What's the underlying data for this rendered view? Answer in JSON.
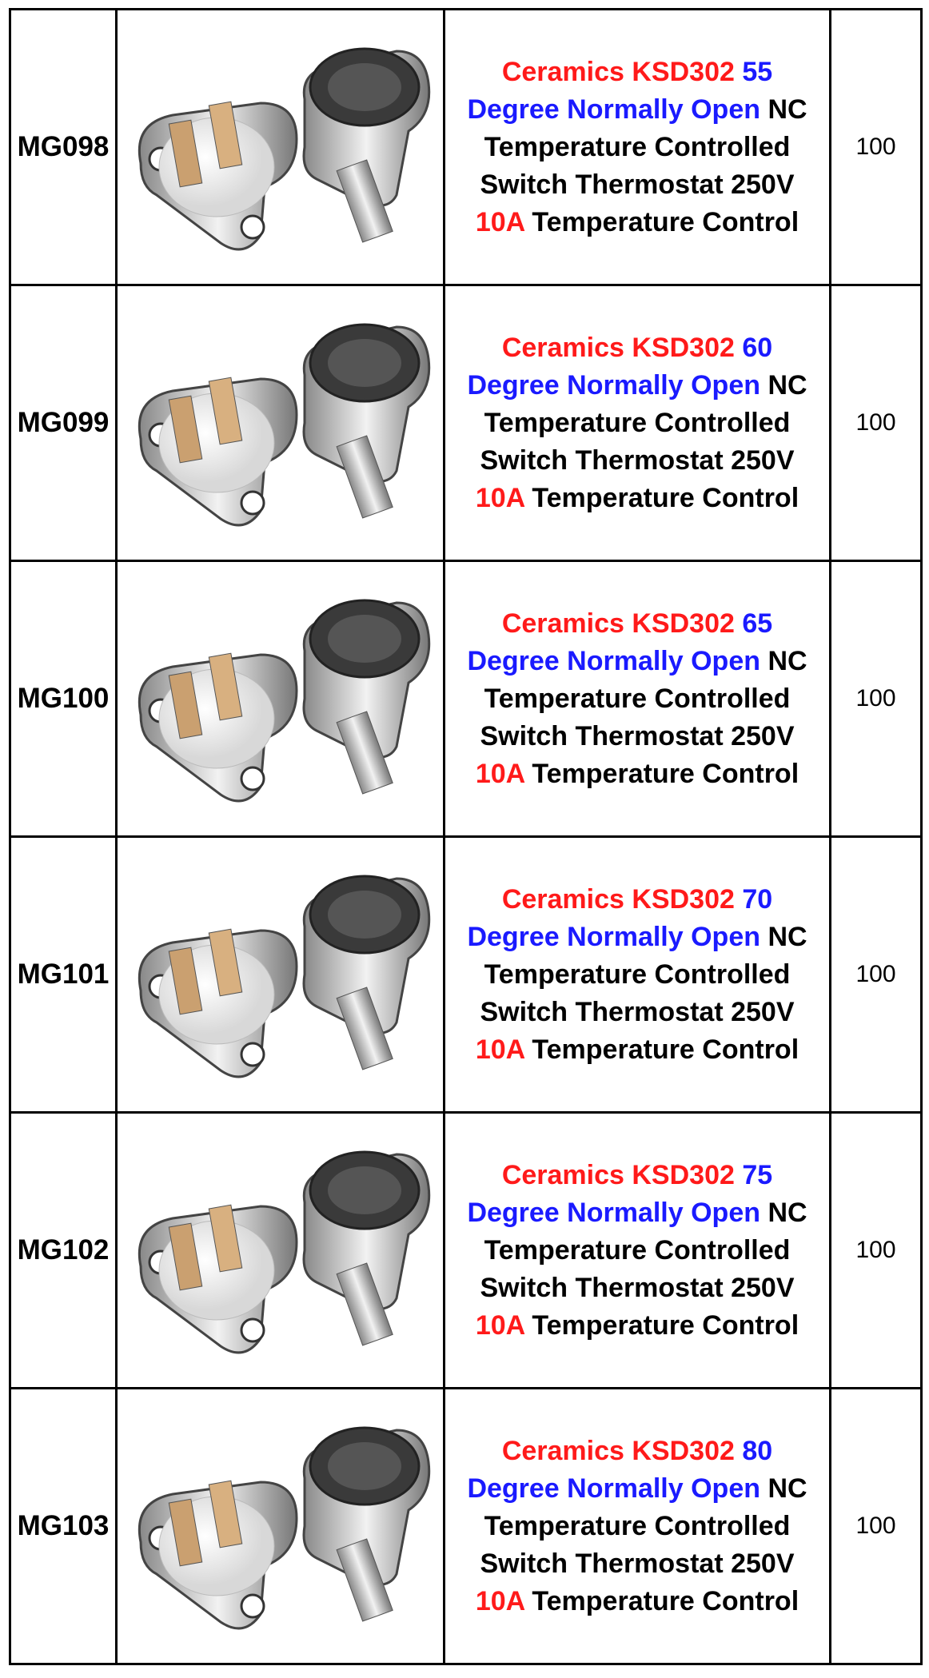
{
  "table": {
    "rows": [
      {
        "code": "MG098",
        "description": [
          {
            "text": "Ceramics KSD302",
            "color": "#ff1a1a"
          },
          {
            "text": "55 Degree Normally Open",
            "color": "#1a1aff"
          },
          {
            "text": "NC Temperature Controlled Switch Thermostat 250V",
            "color": "#000000"
          },
          {
            "text": "10A",
            "color": "#ff1a1a"
          },
          {
            "text": "Temperature Control",
            "color": "#000000"
          }
        ],
        "quantity": "100"
      },
      {
        "code": "MG099",
        "description": [
          {
            "text": "Ceramics KSD302",
            "color": "#ff1a1a"
          },
          {
            "text": "60 Degree Normally Open",
            "color": "#1a1aff"
          },
          {
            "text": "NC Temperature Controlled Switch Thermostat 250V",
            "color": "#000000"
          },
          {
            "text": "10A",
            "color": "#ff1a1a"
          },
          {
            "text": "Temperature Control",
            "color": "#000000"
          }
        ],
        "quantity": "100"
      },
      {
        "code": "MG100",
        "description": [
          {
            "text": "Ceramics KSD302",
            "color": "#ff1a1a"
          },
          {
            "text": "65 Degree Normally Open",
            "color": "#1a1aff"
          },
          {
            "text": "NC Temperature Controlled Switch Thermostat 250V",
            "color": "#000000"
          },
          {
            "text": "10A",
            "color": "#ff1a1a"
          },
          {
            "text": "Temperature Control",
            "color": "#000000"
          }
        ],
        "quantity": "100"
      },
      {
        "code": "MG101",
        "description": [
          {
            "text": "Ceramics KSD302",
            "color": "#ff1a1a"
          },
          {
            "text": "70 Degree Normally Open",
            "color": "#1a1aff"
          },
          {
            "text": "NC Temperature Controlled Switch Thermostat 250V",
            "color": "#000000"
          },
          {
            "text": "10A",
            "color": "#ff1a1a"
          },
          {
            "text": "Temperature Control",
            "color": "#000000"
          }
        ],
        "quantity": "100"
      },
      {
        "code": "MG102",
        "description": [
          {
            "text": "Ceramics KSD302",
            "color": "#ff1a1a"
          },
          {
            "text": "75 Degree Normally Open",
            "color": "#1a1aff"
          },
          {
            "text": "NC Temperature Controlled Switch Thermostat 250V",
            "color": "#000000"
          },
          {
            "text": "10A",
            "color": "#ff1a1a"
          },
          {
            "text": "Temperature Control",
            "color": "#000000"
          }
        ],
        "quantity": "100"
      },
      {
        "code": "MG103",
        "description": [
          {
            "text": "Ceramics KSD302",
            "color": "#ff1a1a"
          },
          {
            "text": "80 Degree Normally Open",
            "color": "#1a1aff"
          },
          {
            "text": "NC Temperature Controlled Switch Thermostat 250V",
            "color": "#000000"
          },
          {
            "text": "10A",
            "color": "#ff1a1a"
          },
          {
            "text": "Temperature Control",
            "color": "#000000"
          }
        ],
        "quantity": "100"
      }
    ]
  }
}
